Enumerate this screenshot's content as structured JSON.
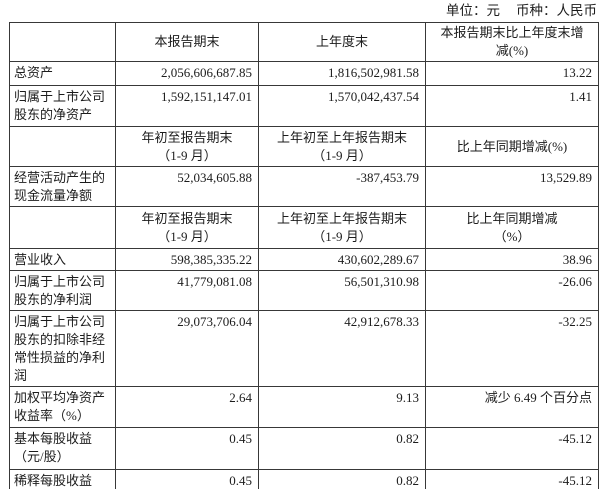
{
  "unit": {
    "unit_label": "单位：元",
    "currency_label": "币种：人民币"
  },
  "headers": {
    "h1": {
      "label": "",
      "current": "本报告期末",
      "prior": "上年度末",
      "change": "本报告期末比上年度末增\n减(%)"
    },
    "h2": {
      "label": "",
      "current": "年初至报告期末\n（1-9 月）",
      "prior": "上年初至上年报告期末\n（1-9 月）",
      "change": "比上年同期增减(%)"
    },
    "h3": {
      "label": "",
      "current": "年初至报告期末\n（1-9 月）",
      "prior": "上年初至上年报告期末\n（1-9 月）",
      "change": "比上年同期增减\n（%）"
    }
  },
  "rows": {
    "total_assets": {
      "label": "总资产",
      "current": "2,056,606,687.85",
      "prior": "1,816,502,981.58",
      "change": "13.22"
    },
    "net_assets": {
      "label": "归属于上市公司\n股东的净资产",
      "current": "1,592,151,147.01",
      "prior": "1,570,042,437.54",
      "change": "1.41"
    },
    "operating_cash_flow": {
      "label": "经营活动产生的\n现金流量净额",
      "current": "52,034,605.88",
      "prior": "-387,453.79",
      "change": "13,529.89"
    },
    "revenue": {
      "label": "营业收入",
      "current": "598,385,335.22",
      "prior": "430,602,289.67",
      "change": "38.96"
    },
    "net_profit": {
      "label": "归属于上市公司\n股东的净利润",
      "current": "41,779,081.08",
      "prior": "56,501,310.98",
      "change": "-26.06"
    },
    "net_profit_excl_nonrecurring": {
      "label": "归属于上市公司\n股东的扣除非经\n常性损益的净利\n润",
      "current": "29,073,706.04",
      "prior": "42,912,678.33",
      "change": "-32.25"
    },
    "weighted_avg_roe": {
      "label": "加权平均净资产\n收益率（%）",
      "current": "2.64",
      "prior": "9.13",
      "change": "减少 6.49 个百分点"
    },
    "basic_eps": {
      "label": "基本每股收益\n（元/股）",
      "current": "0.45",
      "prior": "0.82",
      "change": "-45.12"
    },
    "diluted_eps": {
      "label": "稀释每股收益",
      "current": "0.45",
      "prior": "0.82",
      "change": "-45.12"
    }
  }
}
